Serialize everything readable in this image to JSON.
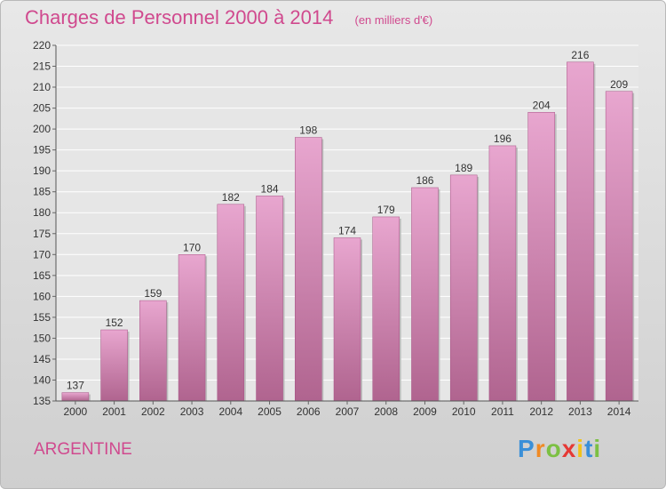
{
  "chart_data": {
    "type": "bar",
    "title": "Charges de Personnel 2000 à 2014",
    "subtitle": "(en milliers d'€)",
    "categories": [
      "2000",
      "2001",
      "2002",
      "2003",
      "2004",
      "2005",
      "2006",
      "2007",
      "2008",
      "2009",
      "2010",
      "2011",
      "2012",
      "2013",
      "2014"
    ],
    "values": [
      137,
      152,
      159,
      170,
      182,
      184,
      198,
      174,
      179,
      186,
      189,
      196,
      204,
      216,
      209
    ],
    "ylim": [
      135,
      220
    ],
    "yticks": [
      135,
      140,
      145,
      150,
      155,
      160,
      165,
      170,
      175,
      180,
      185,
      190,
      195,
      200,
      205,
      210,
      215,
      220
    ],
    "grid": true,
    "colors": {
      "bar": "#c45c9a",
      "title": "#d0498e"
    }
  },
  "footer": {
    "location": "ARGENTINE"
  },
  "brand": {
    "letters": [
      "P",
      "r",
      "o",
      "x",
      "i",
      "t",
      "i"
    ],
    "colors": [
      "#3a8fd8",
      "#f08a24",
      "#7cc043",
      "#e53935",
      "#f2c21b",
      "#3a8fd8",
      "#7cc043"
    ]
  }
}
